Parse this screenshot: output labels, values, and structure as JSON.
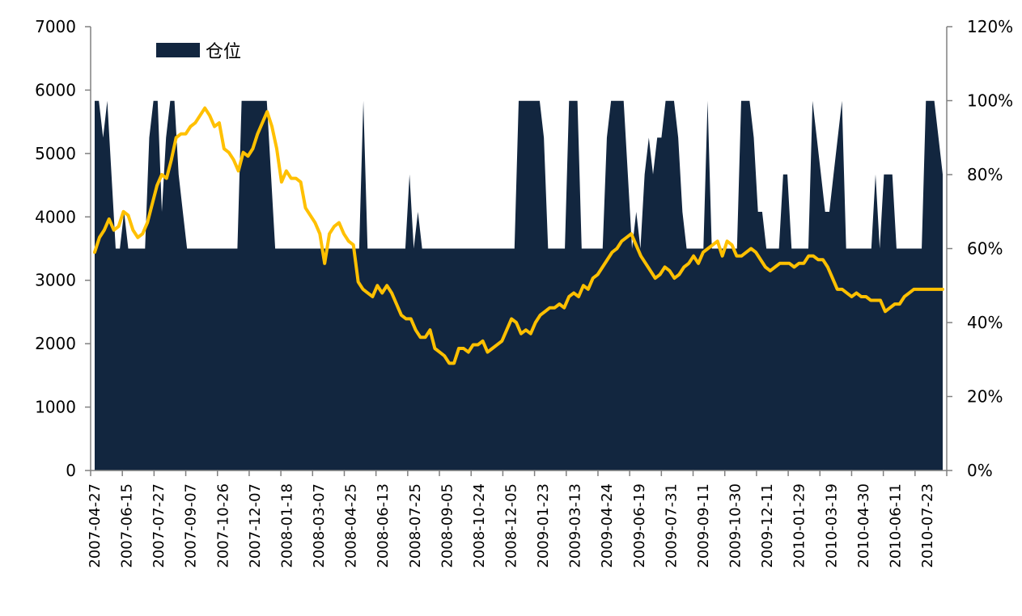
{
  "chart_data": {
    "type": "area",
    "title": "",
    "grid": false,
    "legend": {
      "position": "top-left",
      "entries": [
        "仓位"
      ]
    },
    "colors": {
      "area": "#12263F",
      "line": "#FFC000",
      "axis": "#808080"
    },
    "y_left": {
      "min": 0,
      "max": 7000,
      "ticks": [
        "0",
        "1000",
        "2000",
        "3000",
        "4000",
        "5000",
        "6000",
        "7000"
      ]
    },
    "y_right": {
      "min": 0,
      "max": 1.2,
      "ticks": [
        "0%",
        "20%",
        "40%",
        "60%",
        "80%",
        "100%",
        "120%"
      ]
    },
    "x_tick_labels": [
      "2007-04-27",
      "2007-06-15",
      "2007-07-27",
      "2007-09-07",
      "2007-10-26",
      "2007-12-07",
      "2008-01-18",
      "2008-03-07",
      "2008-04-25",
      "2008-06-13",
      "2008-07-25",
      "2008-09-05",
      "2008-10-24",
      "2008-12-05",
      "2009-01-23",
      "2009-03-13",
      "2009-04-24",
      "2009-06-19",
      "2009-07-31",
      "2009-09-11",
      "2009-10-30",
      "2009-12-11",
      "2010-01-29",
      "2010-03-19",
      "2010-04-30",
      "2010-06-11",
      "2010-07-23"
    ],
    "series": [
      {
        "name": "仓位",
        "axis": "left",
        "kind": "area",
        "values": [
          5830,
          5830,
          5250,
          5830,
          4670,
          3500,
          3500,
          4080,
          3500,
          3500,
          3500,
          3500,
          3500,
          5250,
          5830,
          5830,
          4080,
          5250,
          5830,
          5830,
          4670,
          4080,
          3500,
          3500,
          3500,
          3500,
          3500,
          3500,
          3500,
          3500,
          3500,
          3500,
          3500,
          3500,
          3500,
          5830,
          5830,
          5830,
          5830,
          5830,
          5830,
          5830,
          4670,
          3500,
          3500,
          3500,
          3500,
          3500,
          3500,
          3500,
          3500,
          3500,
          3500,
          3500,
          3500,
          3500,
          3500,
          3500,
          3500,
          3500,
          3500,
          3500,
          3500,
          3500,
          5830,
          3500,
          3500,
          3500,
          3500,
          3500,
          3500,
          3500,
          3500,
          3500,
          3500,
          4670,
          3500,
          4080,
          3500,
          3500,
          3500,
          3500,
          3500,
          3500,
          3500,
          3500,
          3500,
          3500,
          3500,
          3500,
          3500,
          3500,
          3500,
          3500,
          3500,
          3500,
          3500,
          3500,
          3500,
          3500,
          3500,
          5830,
          5830,
          5830,
          5830,
          5830,
          5830,
          5250,
          3500,
          3500,
          3500,
          3500,
          3500,
          5830,
          5830,
          5830,
          3500,
          3500,
          3500,
          3500,
          3500,
          3500,
          5250,
          5830,
          5830,
          5830,
          5830,
          4670,
          3500,
          4080,
          3500,
          4670,
          5250,
          4670,
          5250,
          5250,
          5830,
          5830,
          5830,
          5250,
          4080,
          3500,
          3500,
          3500,
          3500,
          3500,
          5830,
          3500,
          3500,
          3500,
          3500,
          3500,
          3500,
          3500,
          5830,
          5830,
          5830,
          5250,
          4080,
          4080,
          3500,
          3500,
          3500,
          3500,
          4670,
          4670,
          3500,
          3500,
          3500,
          3500,
          3500,
          5830,
          5250,
          4670,
          4080,
          4080,
          4670,
          5250,
          5830,
          3500,
          3500,
          3500,
          3500,
          3500,
          3500,
          3500,
          4670,
          3500,
          4670,
          4670,
          4670,
          3500,
          3500,
          3500,
          3500,
          3500,
          3500,
          3500,
          5830,
          5830,
          5830,
          5250,
          4670
        ]
      },
      {
        "name": "",
        "axis": "right",
        "kind": "line",
        "values": [
          0.59,
          0.63,
          0.65,
          0.68,
          0.65,
          0.66,
          0.7,
          0.69,
          0.65,
          0.63,
          0.64,
          0.67,
          0.72,
          0.77,
          0.8,
          0.79,
          0.84,
          0.9,
          0.91,
          0.91,
          0.93,
          0.94,
          0.96,
          0.98,
          0.96,
          0.93,
          0.94,
          0.87,
          0.86,
          0.84,
          0.81,
          0.86,
          0.85,
          0.87,
          0.91,
          0.94,
          0.97,
          0.93,
          0.87,
          0.78,
          0.81,
          0.79,
          0.79,
          0.78,
          0.71,
          0.69,
          0.67,
          0.64,
          0.56,
          0.64,
          0.66,
          0.67,
          0.64,
          0.62,
          0.61,
          0.51,
          0.49,
          0.48,
          0.47,
          0.5,
          0.48,
          0.5,
          0.48,
          0.45,
          0.42,
          0.41,
          0.41,
          0.38,
          0.36,
          0.36,
          0.38,
          0.33,
          0.32,
          0.31,
          0.29,
          0.29,
          0.33,
          0.33,
          0.32,
          0.34,
          0.34,
          0.35,
          0.32,
          0.33,
          0.34,
          0.35,
          0.38,
          0.41,
          0.4,
          0.37,
          0.38,
          0.37,
          0.4,
          0.42,
          0.43,
          0.44,
          0.44,
          0.45,
          0.44,
          0.47,
          0.48,
          0.47,
          0.5,
          0.49,
          0.52,
          0.53,
          0.55,
          0.57,
          0.59,
          0.6,
          0.62,
          0.63,
          0.64,
          0.61,
          0.58,
          0.56,
          0.54,
          0.52,
          0.53,
          0.55,
          0.54,
          0.52,
          0.53,
          0.55,
          0.56,
          0.58,
          0.56,
          0.59,
          0.6,
          0.61,
          0.62,
          0.58,
          0.62,
          0.61,
          0.58,
          0.58,
          0.59,
          0.6,
          0.59,
          0.57,
          0.55,
          0.54,
          0.55,
          0.56,
          0.56,
          0.56,
          0.55,
          0.56,
          0.56,
          0.58,
          0.58,
          0.57,
          0.57,
          0.55,
          0.52,
          0.49,
          0.49,
          0.48,
          0.47,
          0.48,
          0.47,
          0.47,
          0.46,
          0.46,
          0.46,
          0.43,
          0.44,
          0.45,
          0.45,
          0.47,
          0.48,
          0.49,
          0.49,
          0.49,
          0.49,
          0.49,
          0.49,
          0.49
        ]
      }
    ]
  }
}
